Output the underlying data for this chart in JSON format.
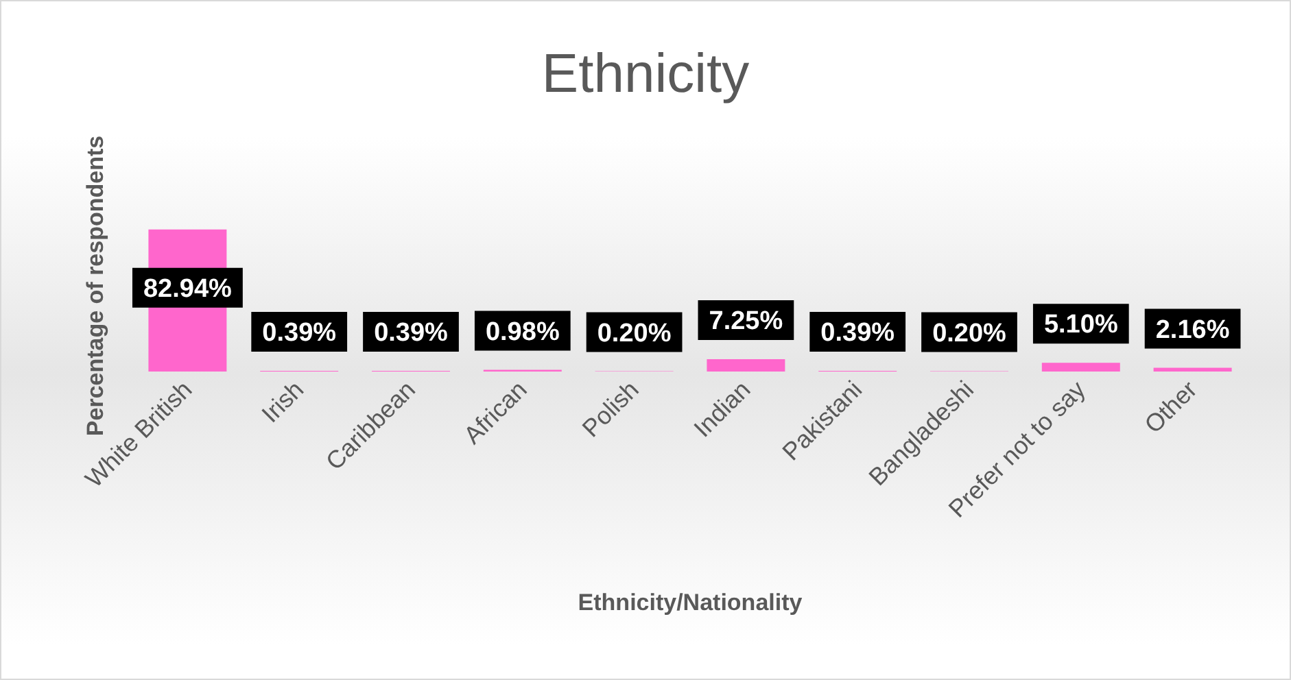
{
  "chart_data": {
    "type": "bar",
    "title": "Ethnicity",
    "xlabel": "Ethnicity/Nationality",
    "ylabel": "Percentage of respondents",
    "categories": [
      "White British",
      "Irish",
      "Caribbean",
      "African",
      "Polish",
      "Indian",
      "Pakistani",
      "Bangladeshi",
      "Prefer not to say",
      "Other"
    ],
    "values": [
      82.94,
      0.39,
      0.39,
      0.98,
      0.2,
      7.25,
      0.39,
      0.2,
      5.1,
      2.16
    ],
    "value_labels": [
      "82.94%",
      "0.39%",
      "0.39%",
      "0.98%",
      "0.20%",
      "7.25%",
      "0.39%",
      "0.20%",
      "5.10%",
      "2.16%"
    ],
    "color": "#ff66cc"
  }
}
